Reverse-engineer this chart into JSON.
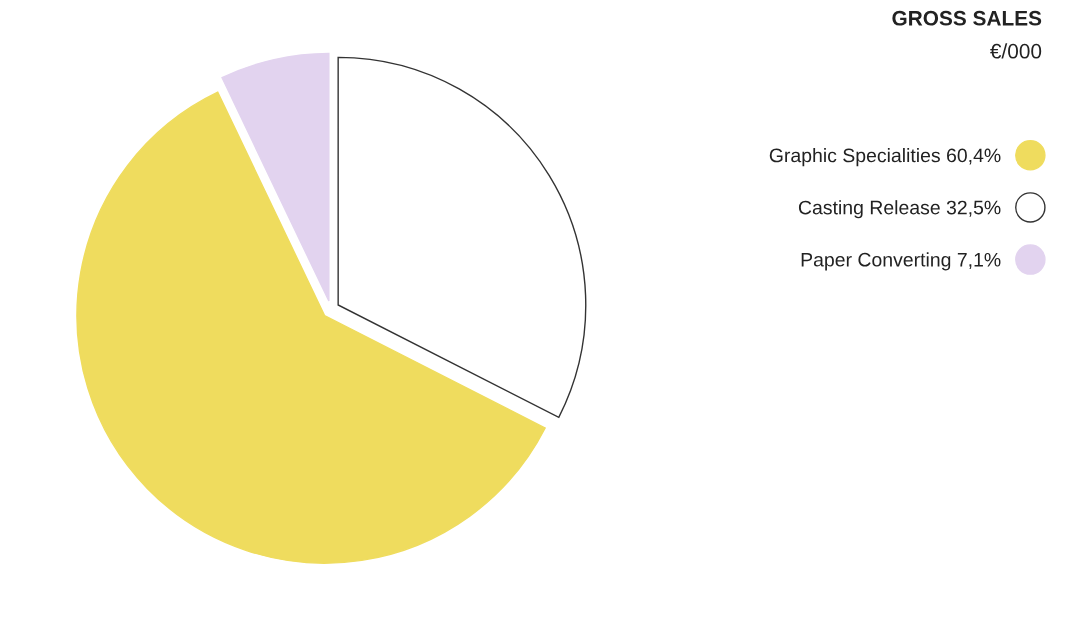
{
  "chart_data": {
    "type": "pie",
    "title": "GROSS SALES",
    "subtitle": "€/000",
    "categories": [
      "Graphic Specialities",
      "Casting Release",
      "Paper Converting"
    ],
    "values": [
      60.4,
      32.5,
      7.1
    ],
    "value_labels": [
      "60,4%",
      "32,5%",
      "7,1%"
    ],
    "colors": [
      "#efdc5e",
      "#ffffff",
      "#e2d3ef"
    ],
    "legend": "right"
  }
}
